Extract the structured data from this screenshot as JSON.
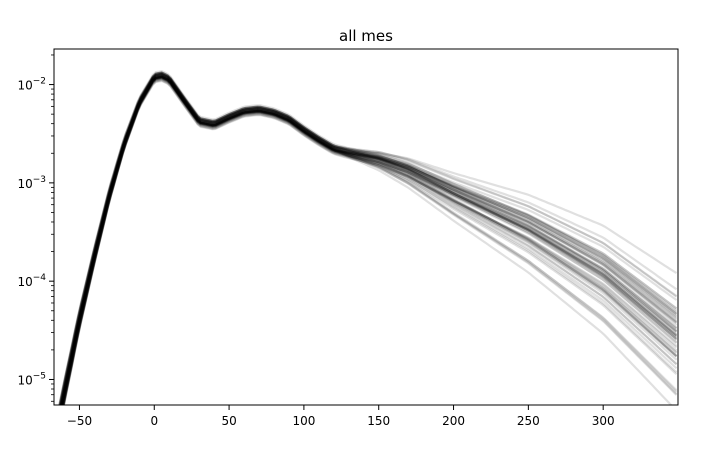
{
  "chart_data": {
    "type": "line",
    "title": "all mes",
    "xlabel": "",
    "ylabel": "",
    "xscale": "linear",
    "yscale": "log",
    "xlim": [
      -67,
      350
    ],
    "ylim": [
      5.5e-06,
      0.023
    ],
    "x_ticks": [
      {
        "value": -50,
        "label": "−50"
      },
      {
        "value": 0,
        "label": "0"
      },
      {
        "value": 50,
        "label": "50"
      },
      {
        "value": 100,
        "label": "100"
      },
      {
        "value": 150,
        "label": "150"
      },
      {
        "value": 200,
        "label": "200"
      },
      {
        "value": 250,
        "label": "250"
      },
      {
        "value": 300,
        "label": "300"
      }
    ],
    "y_ticks": [
      {
        "value": 1e-05,
        "base": "10",
        "exponent": "−5"
      },
      {
        "value": 0.0001,
        "base": "10",
        "exponent": "−4"
      },
      {
        "value": 0.001,
        "base": "10",
        "exponent": "−3"
      },
      {
        "value": 0.01,
        "base": "10",
        "exponent": "−2"
      }
    ],
    "grid": false,
    "legend": "none",
    "line_color": "#000000",
    "line_opacity": 0.12,
    "ensemble_size": 60,
    "series": [
      {
        "x": [
          -67,
          -60,
          -50,
          -40,
          -30,
          -20,
          -10,
          0,
          5,
          10,
          20,
          30,
          40,
          50,
          60,
          70,
          80,
          90,
          100,
          110,
          120,
          130,
          150,
          170,
          200,
          250,
          300,
          350
        ],
        "y": [
          2.2e-06,
          7.5e-06,
          4e-05,
          0.00018,
          0.00075,
          0.0025,
          0.0065,
          0.0118,
          0.0122,
          0.0112,
          0.0068,
          0.0042,
          0.0039,
          0.0046,
          0.0053,
          0.0055,
          0.0051,
          0.0044,
          0.0034,
          0.0027,
          0.0022,
          0.002,
          0.0017,
          0.0013,
          0.00075,
          0.00032,
          0.00011,
          2.5e-05
        ]
      }
    ]
  }
}
